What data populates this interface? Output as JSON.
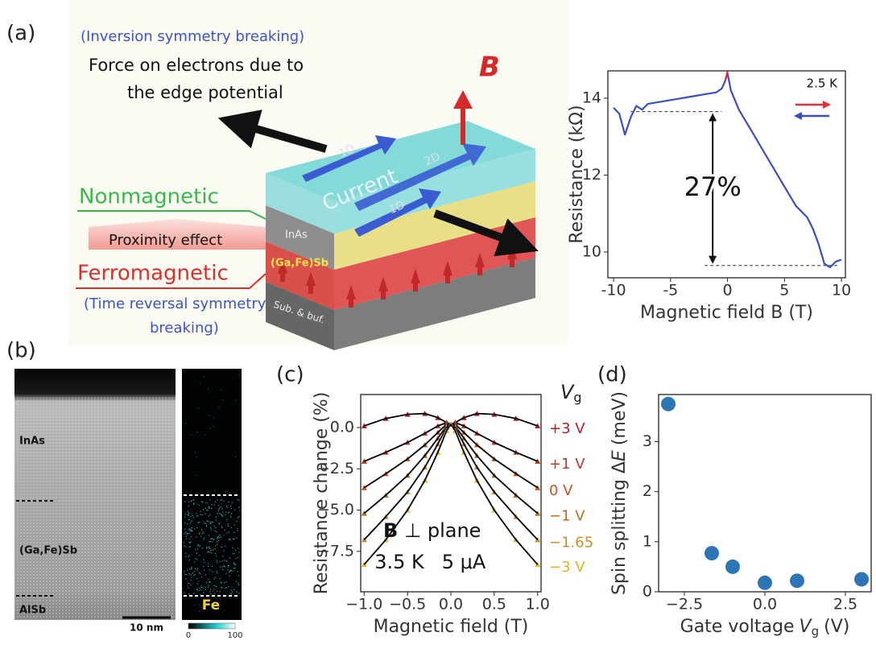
{
  "panel_labels": [
    "(a)",
    "(b)",
    "(c)",
    "(d)"
  ],
  "diagram": {
    "inversion": "(Inversion symmetry breaking)",
    "force": [
      "Force on electrons due to",
      "the edge potential"
    ],
    "field": "B",
    "current": "Current",
    "channels": [
      "1D",
      "2D",
      "1D"
    ],
    "nonmagnetic": "Nonmagnetic",
    "proximity": "Proximity effect",
    "ferromagnetic": "Ferromagnetic",
    "time_reversal": [
      "(Time reversal symmetry",
      "breaking)"
    ],
    "layers": [
      "InAs",
      "(Ga,Fe)Sb",
      "Sub. & buf."
    ]
  },
  "tem": {
    "layers": [
      "InAs",
      "(Ga,Fe)Sb",
      "AlSb"
    ],
    "scale_bar": "10 nm",
    "map_label": "Fe",
    "colorbar_ticks": [
      0,
      100
    ]
  },
  "chart_data": [
    {
      "type": "line",
      "xlabel": "Magnetic field B (T)",
      "ylabel": "Resistance (kΩ)",
      "xlim": [
        -10.5,
        10.35
      ],
      "ylim": [
        9.33,
        14.71
      ],
      "xticks": [
        -10,
        -5,
        0,
        5,
        10
      ],
      "yticks": [
        10,
        12,
        14
      ],
      "x": [
        -10,
        -9.5,
        -9,
        -8.5,
        -8,
        -7.5,
        -7,
        -6,
        -5,
        -4,
        -3,
        -2,
        -1,
        -0.5,
        -0.2,
        0,
        0.3,
        1,
        2,
        3,
        4,
        5,
        6,
        7,
        7.5,
        8,
        8.5,
        9,
        9.5,
        10
      ],
      "series": [
        {
          "color": "#3a4fc0",
          "values": [
            13.75,
            13.6,
            13.05,
            13.5,
            13.8,
            13.7,
            13.85,
            13.9,
            13.95,
            14.0,
            14.05,
            14.1,
            14.15,
            14.25,
            14.45,
            14.65,
            14.2,
            13.7,
            13.2,
            12.7,
            12.2,
            11.7,
            11.2,
            10.9,
            10.6,
            10.2,
            9.7,
            9.6,
            9.75,
            9.8
          ]
        },
        {
          "color": "#e0303a",
          "values": [
            null,
            null,
            null,
            null,
            null,
            null,
            null,
            null,
            null,
            null,
            null,
            null,
            null,
            null,
            14.45,
            14.7,
            null,
            null,
            null,
            null,
            null,
            null,
            null,
            null,
            null,
            null,
            null,
            null,
            null,
            null
          ]
        }
      ],
      "annotations": [
        "2.5 K",
        "27%"
      ],
      "reference_lines": [
        13.65,
        9.65
      ]
    },
    {
      "type": "scatter",
      "xlabel": "Magnetic field (T)",
      "ylabel": "Resistance change (%)",
      "xlim": [
        -1.04,
        1.04
      ],
      "ylim": [
        -9.95,
        2.0
      ],
      "xticks": [
        {
          "value": -1,
          "label": "−1.0"
        },
        {
          "value": -0.5,
          "label": "−0.5"
        },
        {
          "value": 0,
          "label": "0.0"
        },
        0.5,
        {
          "value": 1,
          "label": "1.0"
        }
      ],
      "yticks": [
        {
          "value": 0,
          "label": "0.0"
        },
        {
          "value": -2.5,
          "label": "−2.5"
        },
        {
          "value": -5,
          "label": "−5.0"
        },
        {
          "value": -7.5,
          "label": "−7.5"
        }
      ],
      "x": [
        -1,
        -0.75,
        -0.5,
        -0.3,
        -0.15,
        -0.05,
        0,
        0.05,
        0.15,
        0.3,
        0.5,
        0.75,
        1
      ],
      "fit_line_color": "#000000",
      "series": [
        {
          "name": "+3 V",
          "color": "#b01f24",
          "values": [
            0.1,
            0.55,
            0.8,
            0.85,
            0.6,
            0.3,
            0.2,
            0.3,
            0.6,
            0.85,
            0.8,
            0.55,
            0.1
          ]
        },
        {
          "name": "+1 V",
          "color": "#c0392b",
          "values": [
            -2.05,
            -1.5,
            -0.9,
            -0.35,
            0.1,
            0.3,
            0.2,
            0.3,
            0.1,
            -0.35,
            -0.9,
            -1.5,
            -2.05
          ]
        },
        {
          "name": "0 V",
          "color": "#c4542a",
          "values": [
            -3.65,
            -2.8,
            -1.9,
            -1.05,
            -0.3,
            0.2,
            0.2,
            0.2,
            -0.3,
            -1.05,
            -1.9,
            -2.8,
            -3.65
          ]
        },
        {
          "name": "−1 V",
          "color": "#b8701c",
          "values": [
            -5.2,
            -4.1,
            -2.9,
            -1.7,
            -0.65,
            0.1,
            0.2,
            0.1,
            -0.65,
            -1.7,
            -2.9,
            -4.1,
            -5.2
          ]
        },
        {
          "name": "−1.65",
          "color": "#c98f2a",
          "values": [
            -6.8,
            -5.4,
            -3.9,
            -2.4,
            -1.0,
            0.0,
            0.2,
            0.0,
            -1.0,
            -2.4,
            -3.9,
            -5.4,
            -6.8
          ]
        },
        {
          "name": "−3 V",
          "color": "#e0b422",
          "values": [
            -8.3,
            -6.8,
            -5.0,
            -3.2,
            -1.5,
            -0.2,
            0.2,
            -0.2,
            -1.5,
            -3.2,
            -5.0,
            -6.8,
            -8.3
          ]
        }
      ],
      "legend_title": [
        "V",
        "g"
      ],
      "annotations": {
        "field": [
          "B",
          "⊥ plane"
        ],
        "conditions": [
          "3.5 K",
          "5 μA"
        ]
      }
    },
    {
      "type": "scatter",
      "xlabel": [
        "Gate voltage",
        "V",
        "g",
        "(V)"
      ],
      "ylabel": [
        "Spin splitting Δ",
        "E",
        "(meV)"
      ],
      "xlim": [
        -3.3,
        3.3
      ],
      "ylim": [
        0,
        3.94
      ],
      "xticks": [
        {
          "value": -2.5,
          "label": "−2.5"
        },
        {
          "value": 0,
          "label": "0.0"
        },
        2.5
      ],
      "yticks": [
        0,
        1,
        2,
        3
      ],
      "x": [
        -3,
        -1.65,
        -1,
        0,
        1,
        3
      ],
      "values": [
        3.75,
        0.77,
        0.5,
        0.18,
        0.22,
        0.25
      ],
      "color": "#2e75b6"
    }
  ]
}
